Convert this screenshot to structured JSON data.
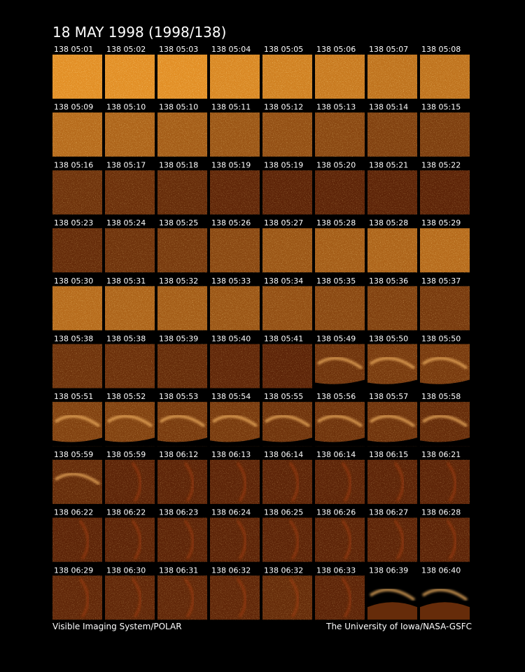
{
  "header": {
    "title": "18 MAY 1998  (1998/138)"
  },
  "frames": [
    "138 05:01",
    "138 05:02",
    "138 05:03",
    "138 05:04",
    "138 05:05",
    "138 05:06",
    "138 05:07",
    "138 05:08",
    "138 05:09",
    "138 05:10",
    "138 05:10",
    "138 05:11",
    "138 05:12",
    "138 05:13",
    "138 05:14",
    "138 05:15",
    "138 05:16",
    "138 05:17",
    "138 05:18",
    "138 05:19",
    "138 05:19",
    "138 05:20",
    "138 05:21",
    "138 05:22",
    "138 05:23",
    "138 05:24",
    "138 05:25",
    "138 05:26",
    "138 05:27",
    "138 05:28",
    "138 05:28",
    "138 05:29",
    "138 05:30",
    "138 05:31",
    "138 05:32",
    "138 05:33",
    "138 05:34",
    "138 05:35",
    "138 05:36",
    "138 05:37",
    "138 05:38",
    "138 05:38",
    "138 05:39",
    "138 05:40",
    "138 05:41",
    "138 05:49",
    "138 05:50",
    "138 05:50",
    "138 05:51",
    "138 05:52",
    "138 05:53",
    "138 05:54",
    "138 05:55",
    "138 05:56",
    "138 05:57",
    "138 05:58",
    "138 05:59",
    "138 05:59",
    "138 06:12",
    "138 06:13",
    "138 06:14",
    "138 06:14",
    "138 06:15",
    "138 06:21",
    "138 06:22",
    "138 06:22",
    "138 06:23",
    "138 06:24",
    "138 06:25",
    "138 06:26",
    "138 06:27",
    "138 06:28",
    "138 06:29",
    "138 06:30",
    "138 06:31",
    "138 06:32",
    "138 06:32",
    "138 06:33",
    "138 06:39",
    "138 06:40"
  ],
  "footer": {
    "left": "Visible Imaging System/POLAR",
    "right": "The University of Iowa/NASA-GSFC"
  }
}
